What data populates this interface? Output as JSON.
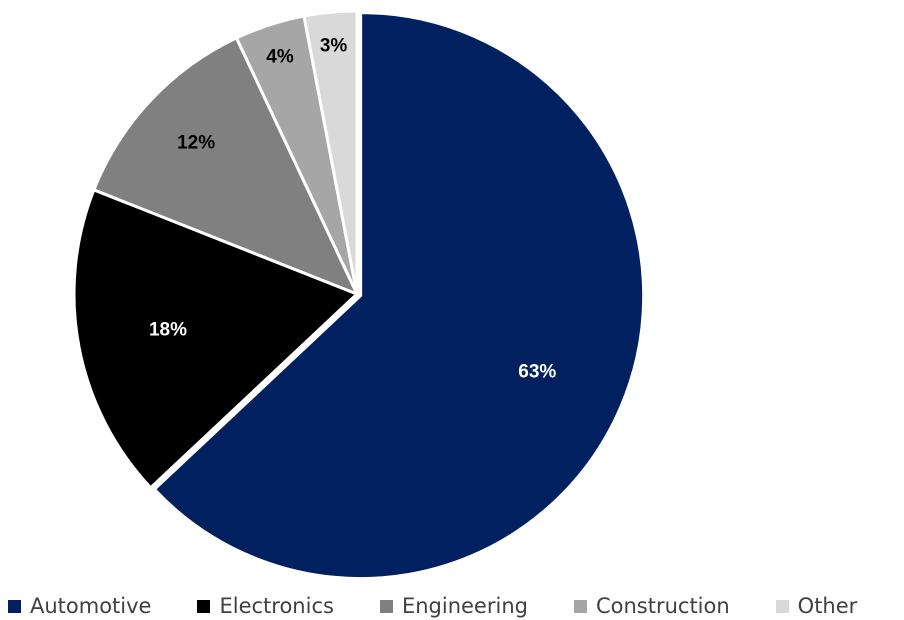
{
  "chart_data": {
    "type": "pie",
    "categories": [
      "Automotive",
      "Electronics",
      "Engineering",
      "Construction",
      "Other"
    ],
    "values": [
      63,
      18,
      12,
      4,
      3
    ],
    "data_labels": [
      "63%",
      "18%",
      "12%",
      "4%",
      "3%"
    ],
    "colors": [
      "#002060",
      "#000000",
      "#808080",
      "#A6A6A6",
      "#D9D9D9"
    ],
    "label_colors": [
      "#ffffff",
      "#ffffff",
      "#000000",
      "#000000",
      "#000000"
    ],
    "start_angle": "12 o'clock",
    "direction": "clockwise",
    "exploded": "Automotive",
    "legend_position": "bottom",
    "title": ""
  }
}
